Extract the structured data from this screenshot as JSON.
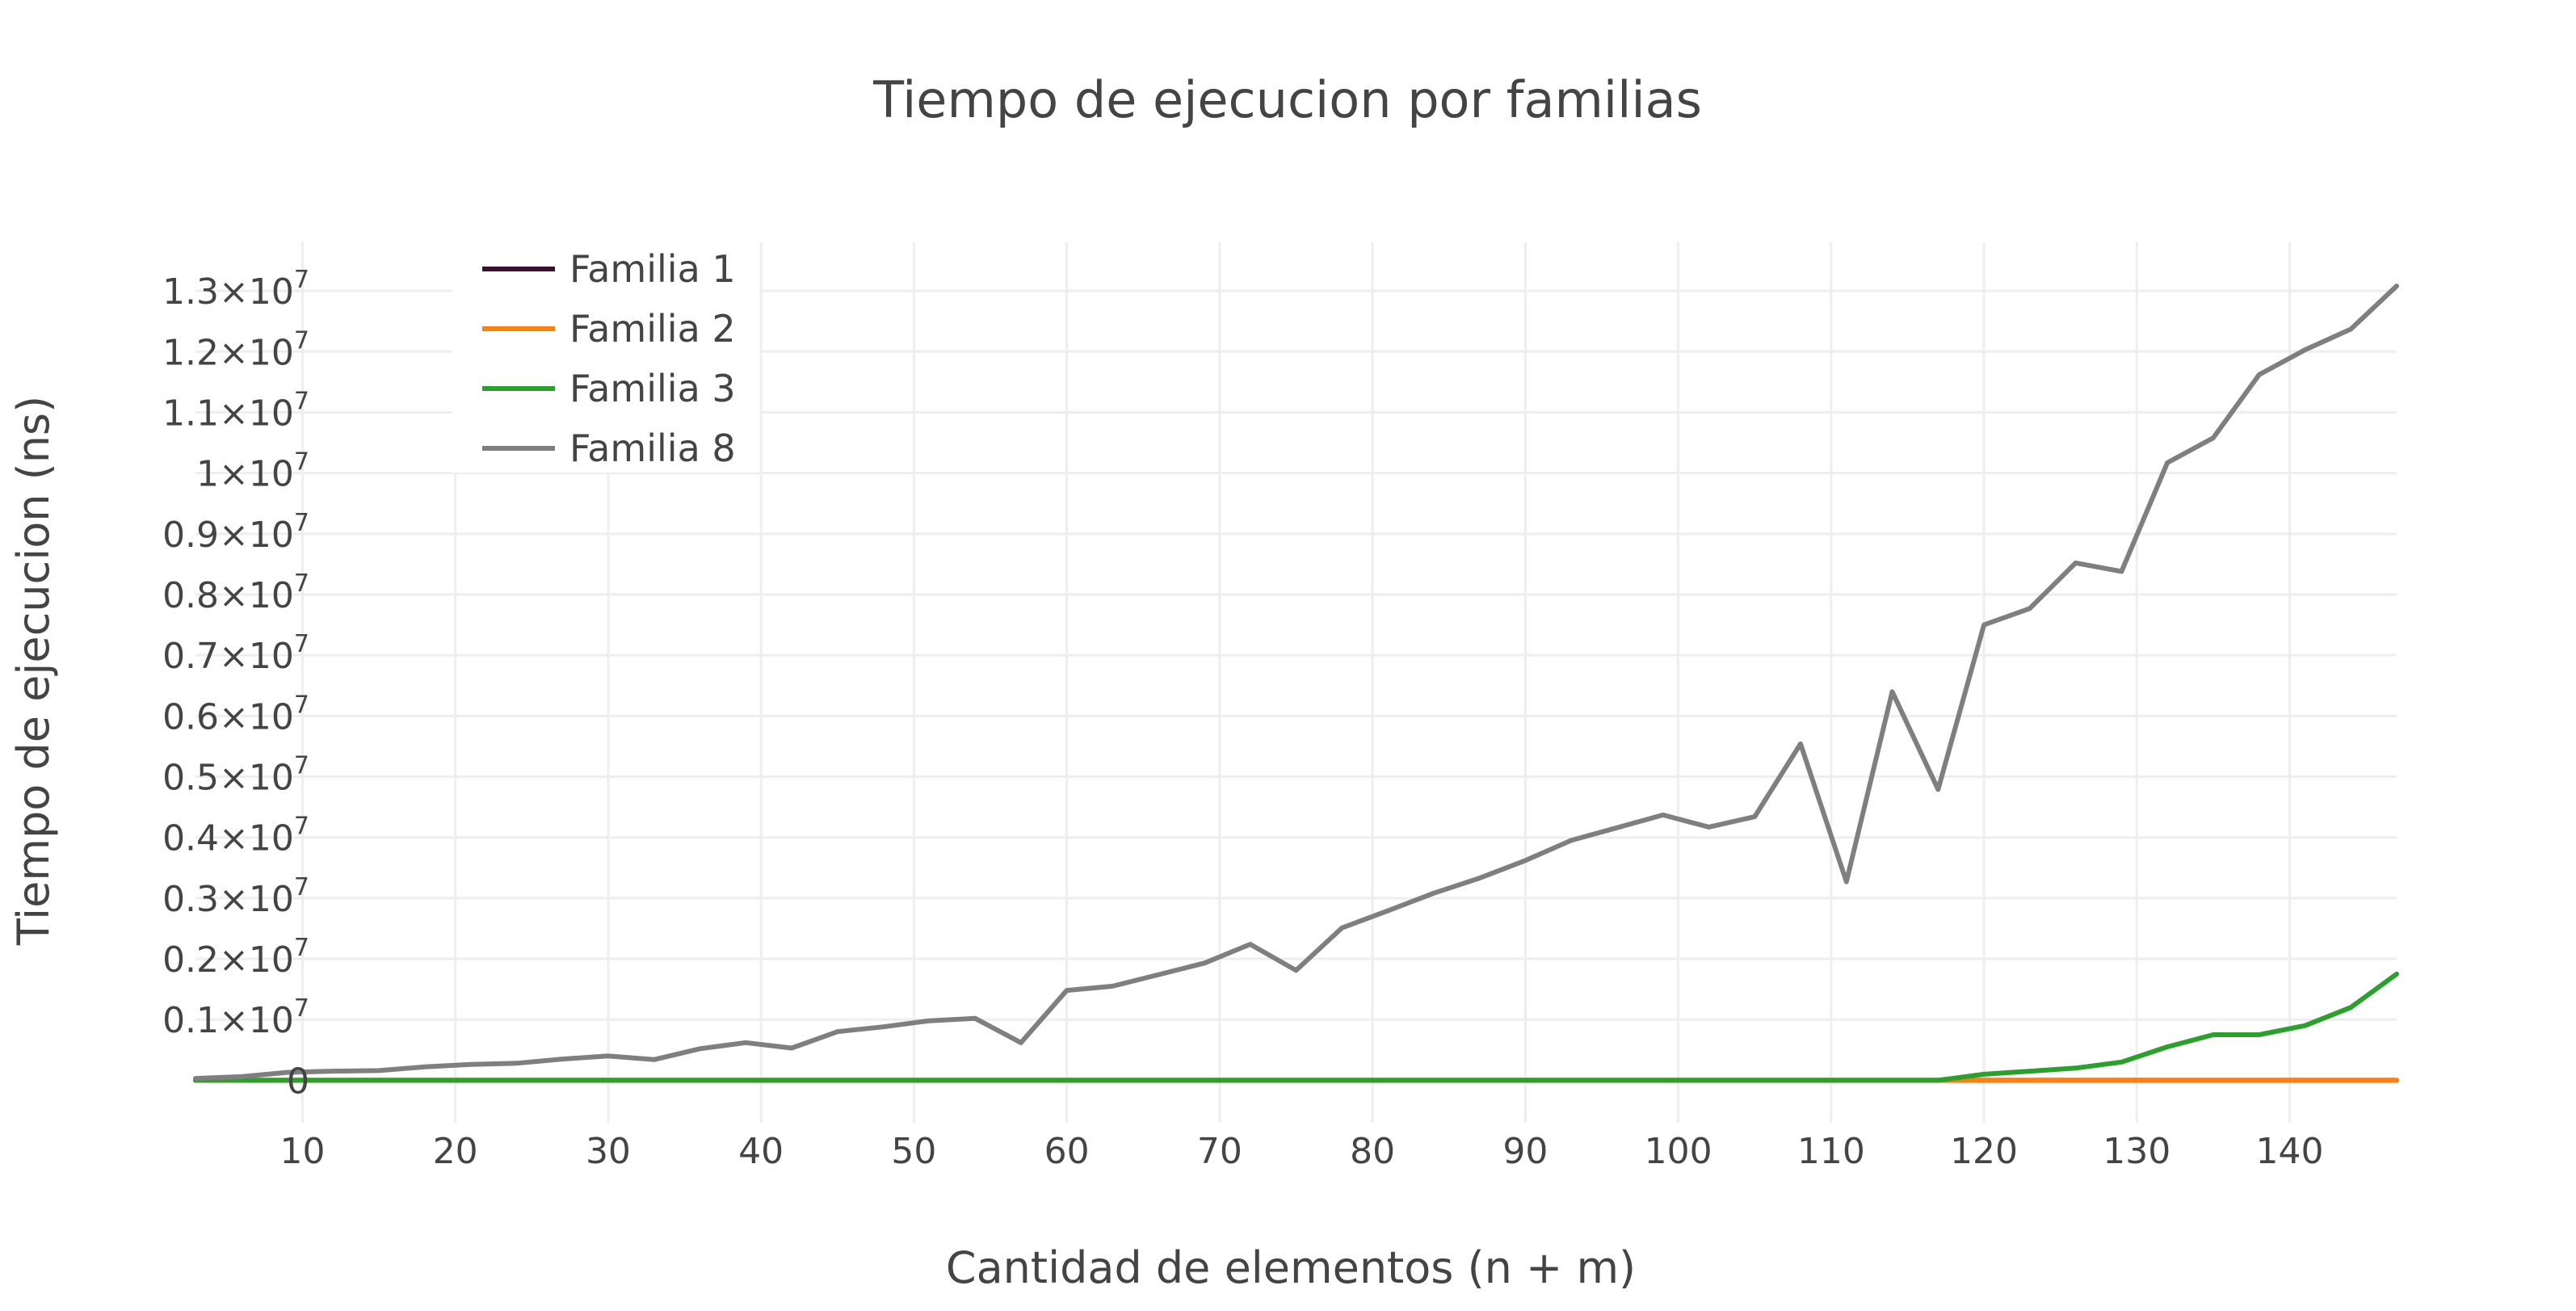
{
  "chart_data": {
    "type": "line",
    "title": "Tiempo de ejecucion por familias",
    "xlabel": "Cantidad de elementos (n + m)",
    "ylabel": "Tiempo de ejecucion (ns)",
    "xlim": [
      3,
      147
    ],
    "ylim": [
      -700000,
      13800000
    ],
    "grid": true,
    "legend_position": "top-left",
    "x_ticks": [
      {
        "value": 10,
        "label": "10"
      },
      {
        "value": 20,
        "label": "20"
      },
      {
        "value": 30,
        "label": "30"
      },
      {
        "value": 40,
        "label": "40"
      },
      {
        "value": 50,
        "label": "50"
      },
      {
        "value": 60,
        "label": "60"
      },
      {
        "value": 70,
        "label": "70"
      },
      {
        "value": 80,
        "label": "80"
      },
      {
        "value": 90,
        "label": "90"
      },
      {
        "value": 100,
        "label": "100"
      },
      {
        "value": 110,
        "label": "110"
      },
      {
        "value": 120,
        "label": "120"
      },
      {
        "value": 130,
        "label": "130"
      },
      {
        "value": 140,
        "label": "140"
      }
    ],
    "y_ticks": [
      {
        "value": 0,
        "label": "0",
        "exp": ""
      },
      {
        "value": 1000000,
        "label": "0.1×10",
        "exp": "7"
      },
      {
        "value": 2000000,
        "label": "0.2×10",
        "exp": "7"
      },
      {
        "value": 3000000,
        "label": "0.3×10",
        "exp": "7"
      },
      {
        "value": 4000000,
        "label": "0.4×10",
        "exp": "7"
      },
      {
        "value": 5000000,
        "label": "0.5×10",
        "exp": "7"
      },
      {
        "value": 6000000,
        "label": "0.6×10",
        "exp": "7"
      },
      {
        "value": 7000000,
        "label": "0.7×10",
        "exp": "7"
      },
      {
        "value": 8000000,
        "label": "0.8×10",
        "exp": "7"
      },
      {
        "value": 9000000,
        "label": "0.9×10",
        "exp": "7"
      },
      {
        "value": 10000000,
        "label": "1×10",
        "exp": "7"
      },
      {
        "value": 11000000,
        "label": "1.1×10",
        "exp": "7"
      },
      {
        "value": 12000000,
        "label": "1.2×10",
        "exp": "7"
      },
      {
        "value": 13000000,
        "label": "1.3×10",
        "exp": "7"
      }
    ],
    "x": [
      3,
      6,
      9,
      12,
      15,
      18,
      21,
      24,
      27,
      30,
      33,
      36,
      39,
      42,
      45,
      48,
      51,
      54,
      57,
      60,
      63,
      66,
      69,
      72,
      75,
      78,
      81,
      84,
      87,
      90,
      93,
      96,
      99,
      102,
      105,
      108,
      111,
      114,
      117,
      120,
      123,
      126,
      129,
      132,
      135,
      138,
      141,
      144,
      147
    ],
    "series": [
      {
        "name": "Familia 1",
        "color": "#3b0f2f",
        "values": [
          0,
          0,
          0,
          0,
          0,
          0,
          0,
          0,
          0,
          0,
          0,
          0,
          0,
          0,
          0,
          0,
          0,
          0,
          0,
          0,
          0,
          0,
          0,
          0,
          0,
          0,
          0,
          0,
          0,
          0,
          0,
          0,
          0,
          0,
          0,
          0,
          0,
          0,
          0,
          0,
          0,
          0,
          0,
          0,
          0,
          0,
          0,
          0,
          0
        ]
      },
      {
        "name": "Familia 2",
        "color": "#ff7f0e",
        "values": [
          0,
          0,
          0,
          0,
          0,
          0,
          0,
          0,
          0,
          0,
          0,
          0,
          0,
          0,
          0,
          0,
          0,
          0,
          0,
          0,
          0,
          0,
          0,
          0,
          0,
          0,
          0,
          0,
          0,
          0,
          0,
          0,
          0,
          0,
          0,
          0,
          0,
          0,
          0,
          0,
          0,
          0,
          0,
          0,
          0,
          0,
          0,
          0,
          0
        ]
      },
      {
        "name": "Familia 3",
        "color": "#2ca02c",
        "values": [
          0,
          0,
          0,
          0,
          0,
          0,
          0,
          0,
          0,
          0,
          0,
          0,
          0,
          0,
          0,
          0,
          0,
          0,
          0,
          0,
          0,
          0,
          0,
          0,
          0,
          0,
          0,
          0,
          0,
          0,
          0,
          0,
          0,
          0,
          0,
          0,
          0,
          0,
          0,
          100000,
          150000,
          200000,
          300000,
          550000,
          750000,
          750000,
          900000,
          1200000,
          1750000
        ]
      },
      {
        "name": "Familia 8",
        "color": "#7f7f7f",
        "values": [
          30000,
          60000,
          130000,
          150000,
          160000,
          220000,
          260000,
          280000,
          350000,
          400000,
          340000,
          520000,
          620000,
          530000,
          800000,
          880000,
          980000,
          1020000,
          620000,
          1480000,
          1550000,
          1740000,
          1930000,
          2240000,
          1810000,
          2510000,
          2790000,
          3080000,
          3330000,
          3620000,
          3950000,
          4160000,
          4370000,
          4170000,
          4340000,
          5540000,
          3270000,
          6400000,
          4790000,
          7500000,
          7770000,
          8520000,
          8380000,
          10170000,
          10580000,
          11620000,
          12030000,
          12370000,
          13080000
        ]
      }
    ]
  }
}
